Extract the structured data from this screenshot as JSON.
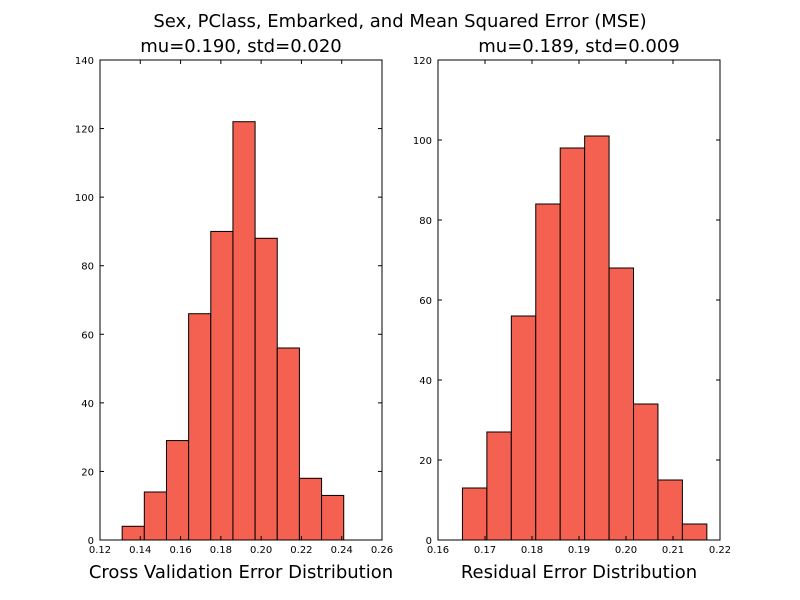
{
  "figure": {
    "suptitle": "Sex, PClass, Embarked, and Mean Squared Error (MSE)"
  },
  "chart_data": [
    {
      "type": "bar",
      "histogram": true,
      "title": "mu=0.190, std=0.020",
      "xlabel": "Cross Validation Error Distribution",
      "ylabel": "",
      "xlim": [
        0.12,
        0.26
      ],
      "ylim": [
        0,
        140
      ],
      "xticks": [
        "0.12",
        "0.14",
        "0.16",
        "0.18",
        "0.20",
        "0.22",
        "0.24",
        "0.26"
      ],
      "yticks": [
        "0",
        "20",
        "40",
        "60",
        "80",
        "100",
        "120",
        "140"
      ],
      "bin_edges": [
        0.131,
        0.142,
        0.153,
        0.164,
        0.175,
        0.186,
        0.197,
        0.208,
        0.219,
        0.23,
        0.241
      ],
      "values": [
        4,
        14,
        29,
        66,
        90,
        122,
        88,
        56,
        18,
        13
      ],
      "color": "#f46150",
      "edge_color": "#000000",
      "grid": false
    },
    {
      "type": "bar",
      "histogram": true,
      "title": "mu=0.189, std=0.009",
      "xlabel": "Residual Error Distribution",
      "ylabel": "",
      "xlim": [
        0.16,
        0.22
      ],
      "ylim": [
        0,
        120
      ],
      "xticks": [
        "0.16",
        "0.17",
        "0.18",
        "0.19",
        "0.20",
        "0.21",
        "0.22"
      ],
      "yticks": [
        "0",
        "20",
        "40",
        "60",
        "80",
        "100",
        "120"
      ],
      "bin_edges": [
        0.1652,
        0.1704,
        0.1756,
        0.1808,
        0.186,
        0.1912,
        0.1964,
        0.2016,
        0.2068,
        0.212,
        0.2172
      ],
      "values": [
        13,
        27,
        56,
        84,
        98,
        101,
        68,
        34,
        15,
        4
      ],
      "color": "#f46150",
      "edge_color": "#000000",
      "grid": false
    }
  ]
}
